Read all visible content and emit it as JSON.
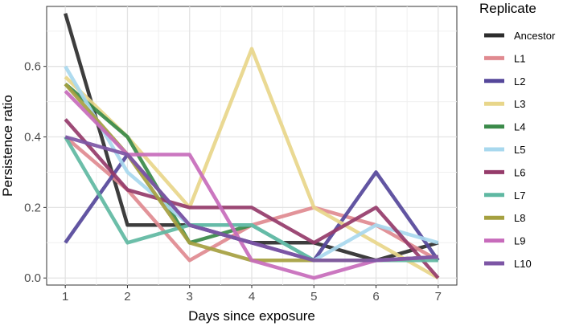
{
  "chart_data": {
    "type": "line",
    "xlabel": "Days since exposure",
    "ylabel": "Persistence ratio",
    "legend_title": "Replicate",
    "legend_position": "right",
    "grid": true,
    "xlim": [
      0.7,
      7.3
    ],
    "ylim": [
      -0.02,
      0.77
    ],
    "x": [
      1,
      2,
      3,
      4,
      5,
      6,
      7
    ],
    "x_ticks": [
      "1",
      "2",
      "3",
      "4",
      "5",
      "6",
      "7"
    ],
    "y_ticks": [
      "0.0",
      "0.2",
      "0.4",
      "0.6"
    ],
    "y_tick_values": [
      0,
      0.2,
      0.4,
      0.6
    ],
    "series": [
      {
        "name": "Ancestor",
        "color": "#2d2d2d",
        "values": [
          0.75,
          0.15,
          0.15,
          0.1,
          0.1,
          0.05,
          0.1
        ]
      },
      {
        "name": "L1",
        "color": "#e08a90",
        "values": [
          0.4,
          0.25,
          0.05,
          0.15,
          0.2,
          0.15,
          0.05
        ]
      },
      {
        "name": "L2",
        "color": "#55479a",
        "values": [
          0.1,
          0.35,
          0.15,
          0.1,
          0.05,
          0.3,
          0.05
        ]
      },
      {
        "name": "L3",
        "color": "#e8d68a",
        "values": [
          0.57,
          0.4,
          0.2,
          0.65,
          0.2,
          0.1,
          0.0
        ]
      },
      {
        "name": "L4",
        "color": "#3a8a49",
        "values": [
          0.55,
          0.4,
          0.1,
          0.15,
          0.05,
          0.05,
          0.06
        ]
      },
      {
        "name": "L5",
        "color": "#a8d8ee",
        "values": [
          0.6,
          0.3,
          0.15,
          0.15,
          0.05,
          0.15,
          0.1
        ]
      },
      {
        "name": "L6",
        "color": "#953b6a",
        "values": [
          0.45,
          0.25,
          0.2,
          0.2,
          0.1,
          0.2,
          0.0
        ]
      },
      {
        "name": "L7",
        "color": "#5fb8a2",
        "values": [
          0.4,
          0.1,
          0.15,
          0.15,
          0.05,
          0.05,
          0.05
        ]
      },
      {
        "name": "L8",
        "color": "#a5a040",
        "values": [
          0.55,
          0.35,
          0.1,
          0.05,
          0.05,
          0.05,
          0.06
        ]
      },
      {
        "name": "L9",
        "color": "#c76bbb",
        "values": [
          0.53,
          0.35,
          0.35,
          0.05,
          0.0,
          0.05,
          0.06
        ]
      },
      {
        "name": "L10",
        "color": "#7d56a5",
        "values": [
          0.4,
          0.35,
          0.15,
          0.1,
          0.05,
          0.05,
          0.06
        ]
      }
    ]
  }
}
